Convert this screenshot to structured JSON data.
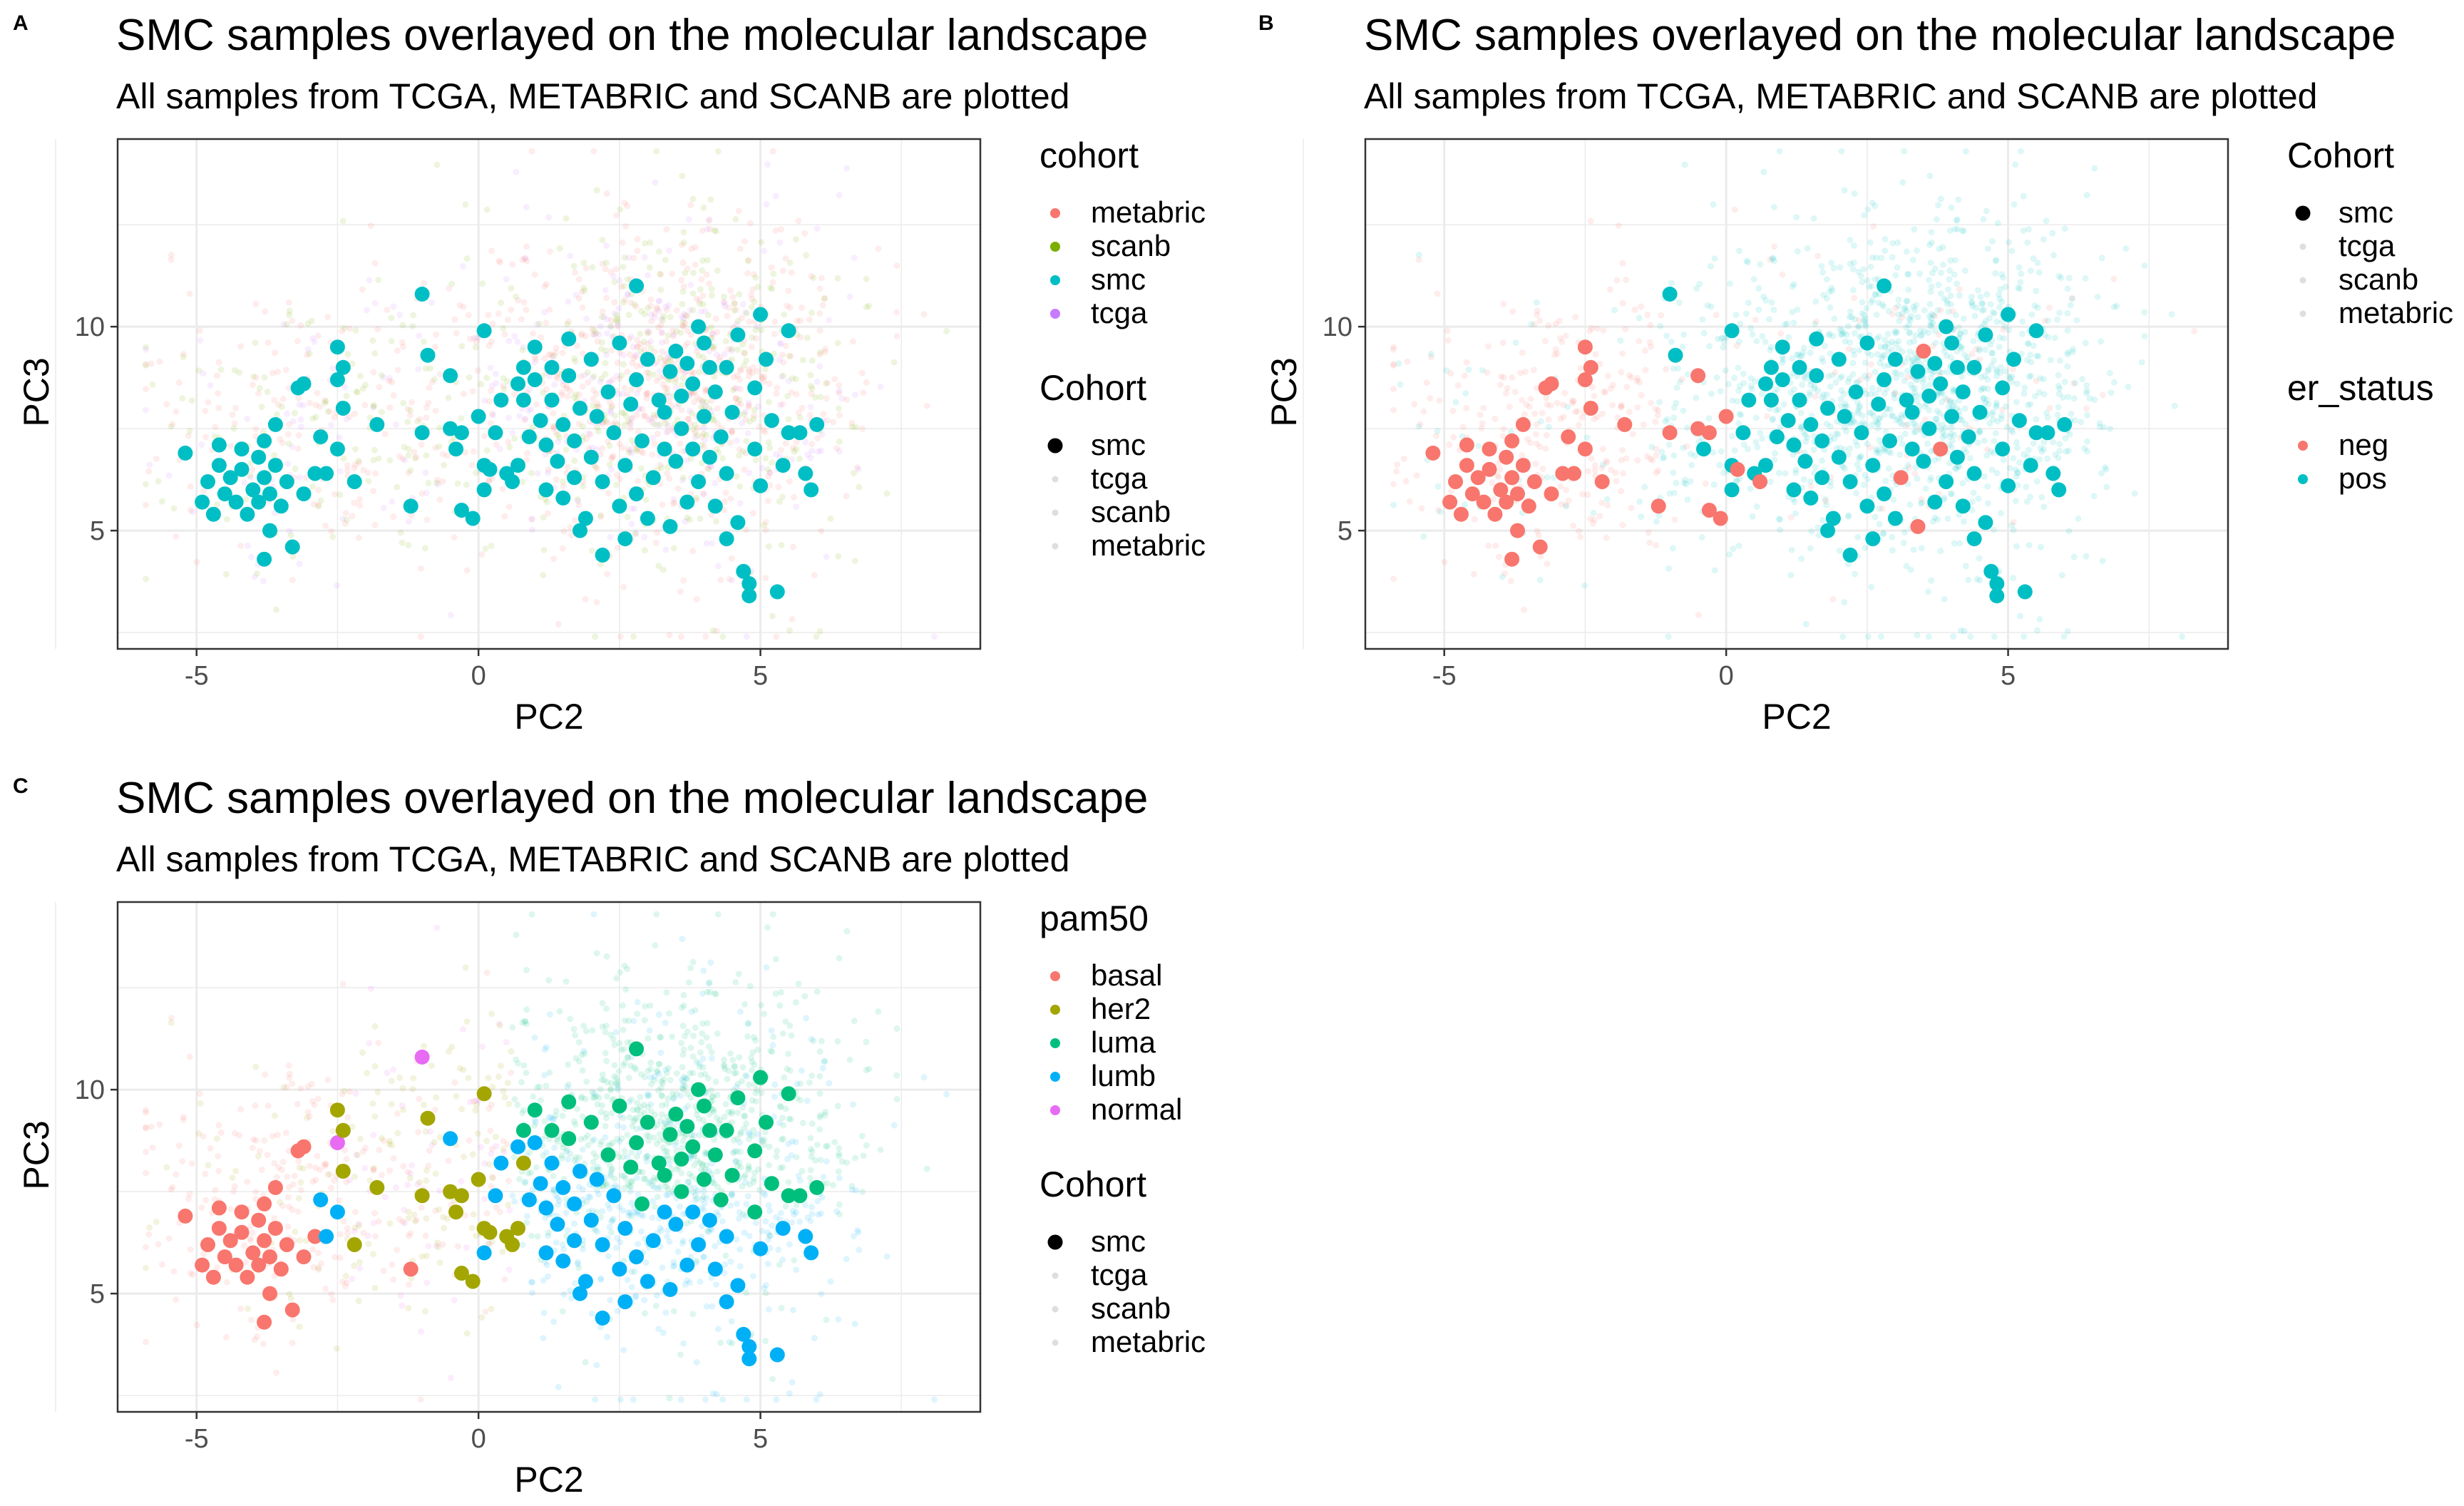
{
  "figure": {
    "panel_labels": [
      "A",
      "B",
      "C"
    ]
  },
  "colors": {
    "metabric": "#F8766D",
    "scanb": "#7CAE00",
    "smc": "#00BFC4",
    "tcga": "#C77CFF",
    "neg": "#F8766D",
    "pos": "#00BFC4",
    "basal": "#F8766D",
    "her2": "#A3A500",
    "luma": "#00BF7D",
    "lumb": "#00B0F6",
    "normal": "#E76BF3",
    "panel_border": "#333333",
    "grid": "#EBEBEB"
  },
  "chart_data": [
    {
      "panel": "A",
      "type": "scatter",
      "title": "SMC samples overlayed on the molecular landscape",
      "subtitle": "All samples from TCGA, METABRIC and SCANB are plotted",
      "xlabel": "PC2",
      "ylabel": "PC3",
      "xlim": [
        -6.4,
        8.9
      ],
      "ylim": [
        2.1,
        14.6
      ],
      "xticks": [
        -5,
        0,
        5
      ],
      "yticks": [
        5,
        10
      ],
      "grid": true,
      "color_by": "cohort",
      "legends": [
        {
          "title": "cohort",
          "style": "color",
          "entries": [
            "metabric",
            "scanb",
            "smc",
            "tcga"
          ]
        },
        {
          "title": "Cohort",
          "style": "alpha",
          "entries": [
            "smc",
            "tcga",
            "scanb",
            "metabric"
          ]
        }
      ],
      "legend_position": "right"
    },
    {
      "panel": "B",
      "type": "scatter",
      "title": "SMC samples overlayed on the molecular landscape",
      "subtitle": "All samples from TCGA, METABRIC and SCANB are plotted",
      "xlabel": "PC2",
      "ylabel": "PC3",
      "xlim": [
        -6.4,
        8.9
      ],
      "ylim": [
        2.1,
        14.6
      ],
      "xticks": [
        -5,
        0,
        5
      ],
      "yticks": [
        5,
        10
      ],
      "grid": true,
      "color_by": "er_status",
      "legends": [
        {
          "title": "Cohort",
          "style": "alpha",
          "entries": [
            "smc",
            "tcga",
            "scanb",
            "metabric"
          ]
        },
        {
          "title": "er_status",
          "style": "color",
          "entries": [
            "neg",
            "pos"
          ]
        }
      ],
      "legend_position": "right"
    },
    {
      "panel": "C",
      "type": "scatter",
      "title": "SMC samples overlayed on the molecular landscape",
      "subtitle": "All samples from TCGA, METABRIC and SCANB are plotted",
      "xlabel": "PC2",
      "ylabel": "PC3",
      "xlim": [
        -6.4,
        8.9
      ],
      "ylim": [
        2.1,
        14.6
      ],
      "xticks": [
        -5,
        0,
        5
      ],
      "yticks": [
        5,
        10
      ],
      "grid": true,
      "color_by": "pam50",
      "legends": [
        {
          "title": "pam50",
          "style": "color",
          "entries": [
            "basal",
            "her2",
            "luma",
            "lumb",
            "normal"
          ]
        },
        {
          "title": "Cohort",
          "style": "alpha",
          "entries": [
            "smc",
            "tcga",
            "scanb",
            "metabric"
          ]
        }
      ],
      "legend_position": "right"
    }
  ],
  "smc_points": [
    {
      "x": -5.2,
      "y": 6.9,
      "er": "neg",
      "pam50": "basal"
    },
    {
      "x": -4.9,
      "y": 5.7,
      "er": "neg",
      "pam50": "basal"
    },
    {
      "x": -4.8,
      "y": 6.2,
      "er": "neg",
      "pam50": "basal"
    },
    {
      "x": -4.7,
      "y": 5.4,
      "er": "neg",
      "pam50": "basal"
    },
    {
      "x": -4.6,
      "y": 7.1,
      "er": "neg",
      "pam50": "basal"
    },
    {
      "x": -4.6,
      "y": 6.6,
      "er": "neg",
      "pam50": "basal"
    },
    {
      "x": -4.5,
      "y": 5.9,
      "er": "neg",
      "pam50": "basal"
    },
    {
      "x": -4.4,
      "y": 6.3,
      "er": "neg",
      "pam50": "basal"
    },
    {
      "x": -4.3,
      "y": 5.7,
      "er": "neg",
      "pam50": "basal"
    },
    {
      "x": -4.2,
      "y": 7.0,
      "er": "neg",
      "pam50": "basal"
    },
    {
      "x": -4.2,
      "y": 6.5,
      "er": "neg",
      "pam50": "basal"
    },
    {
      "x": -4.1,
      "y": 5.4,
      "er": "neg",
      "pam50": "basal"
    },
    {
      "x": -4.0,
      "y": 6.0,
      "er": "neg",
      "pam50": "basal"
    },
    {
      "x": -3.9,
      "y": 5.7,
      "er": "neg",
      "pam50": "basal"
    },
    {
      "x": -3.9,
      "y": 6.8,
      "er": "neg",
      "pam50": "basal"
    },
    {
      "x": -3.8,
      "y": 7.2,
      "er": "neg",
      "pam50": "basal"
    },
    {
      "x": -3.8,
      "y": 6.3,
      "er": "neg",
      "pam50": "basal"
    },
    {
      "x": -3.8,
      "y": 4.3,
      "er": "neg",
      "pam50": "basal"
    },
    {
      "x": -3.7,
      "y": 5.9,
      "er": "neg",
      "pam50": "basal"
    },
    {
      "x": -3.7,
      "y": 5.0,
      "er": "neg",
      "pam50": "basal"
    },
    {
      "x": -3.6,
      "y": 7.6,
      "er": "neg",
      "pam50": "basal"
    },
    {
      "x": -3.6,
      "y": 6.6,
      "er": "neg",
      "pam50": "basal"
    },
    {
      "x": -3.5,
      "y": 5.6,
      "er": "neg",
      "pam50": "basal"
    },
    {
      "x": -3.4,
      "y": 6.2,
      "er": "neg",
      "pam50": "basal"
    },
    {
      "x": -3.3,
      "y": 4.6,
      "er": "neg",
      "pam50": "basal"
    },
    {
      "x": -3.2,
      "y": 8.5,
      "er": "neg",
      "pam50": "basal"
    },
    {
      "x": -3.1,
      "y": 8.6,
      "er": "neg",
      "pam50": "basal"
    },
    {
      "x": -3.1,
      "y": 5.9,
      "er": "neg",
      "pam50": "basal"
    },
    {
      "x": -2.9,
      "y": 6.4,
      "er": "neg",
      "pam50": "basal"
    },
    {
      "x": -2.8,
      "y": 7.3,
      "er": "neg",
      "pam50": "lumb"
    },
    {
      "x": -2.7,
      "y": 6.4,
      "er": "neg",
      "pam50": "lumb"
    },
    {
      "x": -2.5,
      "y": 9.5,
      "er": "neg",
      "pam50": "her2"
    },
    {
      "x": -2.5,
      "y": 8.7,
      "er": "neg",
      "pam50": "normal"
    },
    {
      "x": -2.4,
      "y": 8.0,
      "er": "neg",
      "pam50": "her2"
    },
    {
      "x": -2.4,
      "y": 9.0,
      "er": "neg",
      "pam50": "her2"
    },
    {
      "x": -2.5,
      "y": 7.0,
      "er": "neg",
      "pam50": "lumb"
    },
    {
      "x": -2.2,
      "y": 6.2,
      "er": "neg",
      "pam50": "her2"
    },
    {
      "x": -1.8,
      "y": 7.6,
      "er": "neg",
      "pam50": "her2"
    },
    {
      "x": -1.2,
      "y": 5.6,
      "er": "neg",
      "pam50": "basal"
    },
    {
      "x": -1.0,
      "y": 10.8,
      "er": "pos",
      "pam50": "normal"
    },
    {
      "x": -0.9,
      "y": 9.3,
      "er": "pos",
      "pam50": "her2"
    },
    {
      "x": -1.0,
      "y": 7.4,
      "er": "neg",
      "pam50": "her2"
    },
    {
      "x": -0.5,
      "y": 8.8,
      "er": "neg",
      "pam50": "lumb"
    },
    {
      "x": -0.5,
      "y": 7.5,
      "er": "neg",
      "pam50": "her2"
    },
    {
      "x": -0.4,
      "y": 7.0,
      "er": "pos",
      "pam50": "her2"
    },
    {
      "x": -0.3,
      "y": 7.4,
      "er": "neg",
      "pam50": "her2"
    },
    {
      "x": -0.3,
      "y": 5.5,
      "er": "neg",
      "pam50": "her2"
    },
    {
      "x": -0.1,
      "y": 5.3,
      "er": "neg",
      "pam50": "her2"
    },
    {
      "x": 0.0,
      "y": 7.8,
      "er": "neg",
      "pam50": "her2"
    },
    {
      "x": 0.1,
      "y": 6.6,
      "er": "pos",
      "pam50": "her2"
    },
    {
      "x": 0.1,
      "y": 9.9,
      "er": "pos",
      "pam50": "her2"
    },
    {
      "x": 0.2,
      "y": 6.5,
      "er": "neg",
      "pam50": "her2"
    },
    {
      "x": 0.1,
      "y": 6.0,
      "er": "pos",
      "pam50": "lumb"
    },
    {
      "x": 0.3,
      "y": 7.4,
      "er": "pos",
      "pam50": "lumb"
    },
    {
      "x": 0.4,
      "y": 8.2,
      "er": "pos",
      "pam50": "lumb"
    },
    {
      "x": 0.5,
      "y": 6.4,
      "er": "pos",
      "pam50": "her2"
    },
    {
      "x": 0.6,
      "y": 6.2,
      "er": "neg",
      "pam50": "her2"
    },
    {
      "x": 0.7,
      "y": 8.6,
      "er": "pos",
      "pam50": "lumb"
    },
    {
      "x": 0.7,
      "y": 6.6,
      "er": "pos",
      "pam50": "her2"
    },
    {
      "x": 0.8,
      "y": 9.0,
      "er": "pos",
      "pam50": "luma"
    },
    {
      "x": 0.8,
      "y": 8.2,
      "er": "pos",
      "pam50": "her2"
    },
    {
      "x": 0.9,
      "y": 7.3,
      "er": "pos",
      "pam50": "lumb"
    },
    {
      "x": 1.0,
      "y": 9.5,
      "er": "pos",
      "pam50": "luma"
    },
    {
      "x": 1.0,
      "y": 8.7,
      "er": "pos",
      "pam50": "lumb"
    },
    {
      "x": 1.1,
      "y": 7.7,
      "er": "pos",
      "pam50": "lumb"
    },
    {
      "x": 1.2,
      "y": 7.1,
      "er": "pos",
      "pam50": "lumb"
    },
    {
      "x": 1.2,
      "y": 6.0,
      "er": "pos",
      "pam50": "lumb"
    },
    {
      "x": 1.3,
      "y": 9.0,
      "er": "pos",
      "pam50": "luma"
    },
    {
      "x": 1.3,
      "y": 8.2,
      "er": "pos",
      "pam50": "lumb"
    },
    {
      "x": 1.4,
      "y": 6.7,
      "er": "pos",
      "pam50": "lumb"
    },
    {
      "x": 1.5,
      "y": 5.8,
      "er": "pos",
      "pam50": "lumb"
    },
    {
      "x": 1.5,
      "y": 7.6,
      "er": "pos",
      "pam50": "lumb"
    },
    {
      "x": 1.6,
      "y": 9.7,
      "er": "pos",
      "pam50": "luma"
    },
    {
      "x": 1.6,
      "y": 8.8,
      "er": "pos",
      "pam50": "luma"
    },
    {
      "x": 1.7,
      "y": 7.2,
      "er": "pos",
      "pam50": "lumb"
    },
    {
      "x": 1.7,
      "y": 6.3,
      "er": "pos",
      "pam50": "lumb"
    },
    {
      "x": 1.8,
      "y": 8.0,
      "er": "pos",
      "pam50": "lumb"
    },
    {
      "x": 1.9,
      "y": 5.3,
      "er": "pos",
      "pam50": "lumb"
    },
    {
      "x": 2.0,
      "y": 9.2,
      "er": "pos",
      "pam50": "luma"
    },
    {
      "x": 2.0,
      "y": 6.8,
      "er": "pos",
      "pam50": "lumb"
    },
    {
      "x": 2.1,
      "y": 7.8,
      "er": "pos",
      "pam50": "lumb"
    },
    {
      "x": 2.2,
      "y": 4.4,
      "er": "pos",
      "pam50": "lumb"
    },
    {
      "x": 2.2,
      "y": 6.2,
      "er": "pos",
      "pam50": "lumb"
    },
    {
      "x": 2.3,
      "y": 8.4,
      "er": "pos",
      "pam50": "luma"
    },
    {
      "x": 2.4,
      "y": 7.4,
      "er": "pos",
      "pam50": "lumb"
    },
    {
      "x": 2.5,
      "y": 9.6,
      "er": "pos",
      "pam50": "luma"
    },
    {
      "x": 2.6,
      "y": 6.6,
      "er": "pos",
      "pam50": "lumb"
    },
    {
      "x": 2.6,
      "y": 4.8,
      "er": "pos",
      "pam50": "lumb"
    },
    {
      "x": 2.7,
      "y": 8.1,
      "er": "pos",
      "pam50": "luma"
    },
    {
      "x": 2.8,
      "y": 11.0,
      "er": "pos",
      "pam50": "luma"
    },
    {
      "x": 2.8,
      "y": 8.7,
      "er": "pos",
      "pam50": "luma"
    },
    {
      "x": 2.8,
      "y": 5.9,
      "er": "pos",
      "pam50": "lumb"
    },
    {
      "x": 2.9,
      "y": 7.2,
      "er": "pos",
      "pam50": "luma"
    },
    {
      "x": 3.0,
      "y": 9.2,
      "er": "pos",
      "pam50": "luma"
    },
    {
      "x": 3.0,
      "y": 5.3,
      "er": "pos",
      "pam50": "lumb"
    },
    {
      "x": 3.1,
      "y": 6.3,
      "er": "neg",
      "pam50": "lumb"
    },
    {
      "x": 3.2,
      "y": 8.2,
      "er": "pos",
      "pam50": "luma"
    },
    {
      "x": 3.3,
      "y": 7.0,
      "er": "pos",
      "pam50": "lumb"
    },
    {
      "x": 3.4,
      "y": 5.1,
      "er": "neg",
      "pam50": "lumb"
    },
    {
      "x": 3.4,
      "y": 8.9,
      "er": "pos",
      "pam50": "luma"
    },
    {
      "x": 3.5,
      "y": 9.4,
      "er": "neg",
      "pam50": "luma"
    },
    {
      "x": 3.5,
      "y": 6.7,
      "er": "pos",
      "pam50": "lumb"
    },
    {
      "x": 3.6,
      "y": 7.5,
      "er": "pos",
      "pam50": "luma"
    },
    {
      "x": 3.6,
      "y": 8.3,
      "er": "pos",
      "pam50": "luma"
    },
    {
      "x": 3.7,
      "y": 5.7,
      "er": "pos",
      "pam50": "lumb"
    },
    {
      "x": 3.7,
      "y": 9.1,
      "er": "pos",
      "pam50": "luma"
    },
    {
      "x": 3.8,
      "y": 7.0,
      "er": "neg",
      "pam50": "lumb"
    },
    {
      "x": 3.8,
      "y": 8.6,
      "er": "pos",
      "pam50": "luma"
    },
    {
      "x": 3.9,
      "y": 6.2,
      "er": "pos",
      "pam50": "lumb"
    },
    {
      "x": 3.9,
      "y": 10.0,
      "er": "pos",
      "pam50": "luma"
    },
    {
      "x": 4.0,
      "y": 7.8,
      "er": "pos",
      "pam50": "luma"
    },
    {
      "x": 4.0,
      "y": 9.6,
      "er": "pos",
      "pam50": "luma"
    },
    {
      "x": 4.1,
      "y": 6.8,
      "er": "pos",
      "pam50": "lumb"
    },
    {
      "x": 4.2,
      "y": 8.4,
      "er": "pos",
      "pam50": "luma"
    },
    {
      "x": 4.2,
      "y": 5.6,
      "er": "pos",
      "pam50": "lumb"
    },
    {
      "x": 4.3,
      "y": 7.3,
      "er": "pos",
      "pam50": "luma"
    },
    {
      "x": 4.4,
      "y": 9.0,
      "er": "pos",
      "pam50": "luma"
    },
    {
      "x": 4.4,
      "y": 6.4,
      "er": "pos",
      "pam50": "lumb"
    },
    {
      "x": 4.5,
      "y": 7.9,
      "er": "pos",
      "pam50": "luma"
    },
    {
      "x": 4.6,
      "y": 9.8,
      "er": "pos",
      "pam50": "luma"
    },
    {
      "x": 4.6,
      "y": 5.2,
      "er": "pos",
      "pam50": "lumb"
    },
    {
      "x": 4.7,
      "y": 4.0,
      "er": "pos",
      "pam50": "lumb"
    },
    {
      "x": 4.8,
      "y": 3.4,
      "er": "pos",
      "pam50": "lumb"
    },
    {
      "x": 4.8,
      "y": 3.7,
      "er": "pos",
      "pam50": "lumb"
    },
    {
      "x": 4.9,
      "y": 7.0,
      "er": "pos",
      "pam50": "luma"
    },
    {
      "x": 4.9,
      "y": 8.5,
      "er": "pos",
      "pam50": "luma"
    },
    {
      "x": 5.0,
      "y": 10.3,
      "er": "pos",
      "pam50": "luma"
    },
    {
      "x": 5.0,
      "y": 6.1,
      "er": "pos",
      "pam50": "lumb"
    },
    {
      "x": 5.1,
      "y": 9.2,
      "er": "pos",
      "pam50": "luma"
    },
    {
      "x": 5.2,
      "y": 7.7,
      "er": "pos",
      "pam50": "luma"
    },
    {
      "x": 5.3,
      "y": 3.5,
      "er": "pos",
      "pam50": "lumb"
    },
    {
      "x": 5.4,
      "y": 6.6,
      "er": "pos",
      "pam50": "lumb"
    },
    {
      "x": 5.5,
      "y": 9.9,
      "er": "pos",
      "pam50": "luma"
    },
    {
      "x": 5.5,
      "y": 7.4,
      "er": "pos",
      "pam50": "luma"
    },
    {
      "x": 5.7,
      "y": 7.4,
      "er": "pos",
      "pam50": "luma"
    },
    {
      "x": 5.8,
      "y": 6.4,
      "er": "pos",
      "pam50": "lumb"
    },
    {
      "x": 5.9,
      "y": 6.0,
      "er": "pos",
      "pam50": "lumb"
    },
    {
      "x": 6.0,
      "y": 7.6,
      "er": "pos",
      "pam50": "luma"
    },
    {
      "x": 4.1,
      "y": 9.0,
      "er": "pos",
      "pam50": "luma"
    },
    {
      "x": 3.3,
      "y": 7.9,
      "er": "pos",
      "pam50": "luma"
    },
    {
      "x": 2.5,
      "y": 5.6,
      "er": "pos",
      "pam50": "lumb"
    },
    {
      "x": 1.8,
      "y": 5.0,
      "er": "pos",
      "pam50": "lumb"
    },
    {
      "x": 4.4,
      "y": 4.8,
      "er": "pos",
      "pam50": "lumb"
    }
  ]
}
